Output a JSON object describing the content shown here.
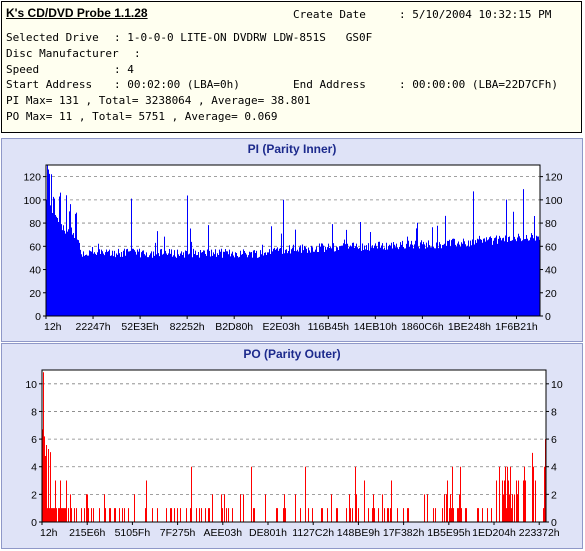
{
  "info": {
    "app_title": "K's CD/DVD Probe 1.1.28",
    "create_date_label": "Create Date",
    "create_date_value": ": 5/10/2004 10:32:15 PM",
    "selected_drive_label": "Selected Drive",
    "selected_drive_value": ": 1-0-0-0 LITE-ON DVDRW LDW-851S   GS0F",
    "disc_manufacturer_label": "Disc Manufacturer",
    "disc_manufacturer_value": ":",
    "speed_label": "Speed",
    "speed_value": ": 4",
    "start_address_label": "Start Address",
    "start_address_value": ": 00:02:00 (LBA=0h)",
    "end_address_label": "End Address",
    "end_address_value": ": 00:00:00 (LBA=22D7CFh)",
    "pi_summary": "PI Max= 131 , Total= 3238064 , Average= 38.801",
    "po_summary": "PO Max= 11 , Total= 5751 , Average= 0.069"
  },
  "colors": {
    "pi": "#0000ff",
    "po": "#ff0000",
    "panel_bg": "#dfe3f7",
    "plot_bg": "#ffffff",
    "title": "#1c2a8c"
  },
  "chart_data": [
    {
      "type": "bar",
      "title": "PI (Parity Inner)",
      "ylim": [
        0,
        130
      ],
      "yticks": [
        0,
        20,
        40,
        60,
        80,
        100,
        120
      ],
      "xticklabels": [
        "12h",
        "22247h",
        "52E3Eh",
        "82252h",
        "B2D80h",
        "E2E03h",
        "116B45h",
        "14EB10h",
        "1860C6h",
        "1BE248h",
        "1F6B21h"
      ],
      "grid": true,
      "max": 131,
      "total": 3238064,
      "average": 38.801
    },
    {
      "type": "bar",
      "title": "PO (Parity Outer)",
      "ylim": [
        0,
        11
      ],
      "yticks": [
        0,
        2,
        4,
        6,
        8,
        10
      ],
      "xticklabels": [
        "12h",
        "215E6h",
        "5105Fh",
        "7F275h",
        "AEE03h",
        "DE801h",
        "1127C2h",
        "148BE9h",
        "17F382h",
        "1B5E95h",
        "1ED204h",
        "223372h"
      ],
      "grid": true,
      "max": 11,
      "total": 5751,
      "average": 0.069
    }
  ]
}
